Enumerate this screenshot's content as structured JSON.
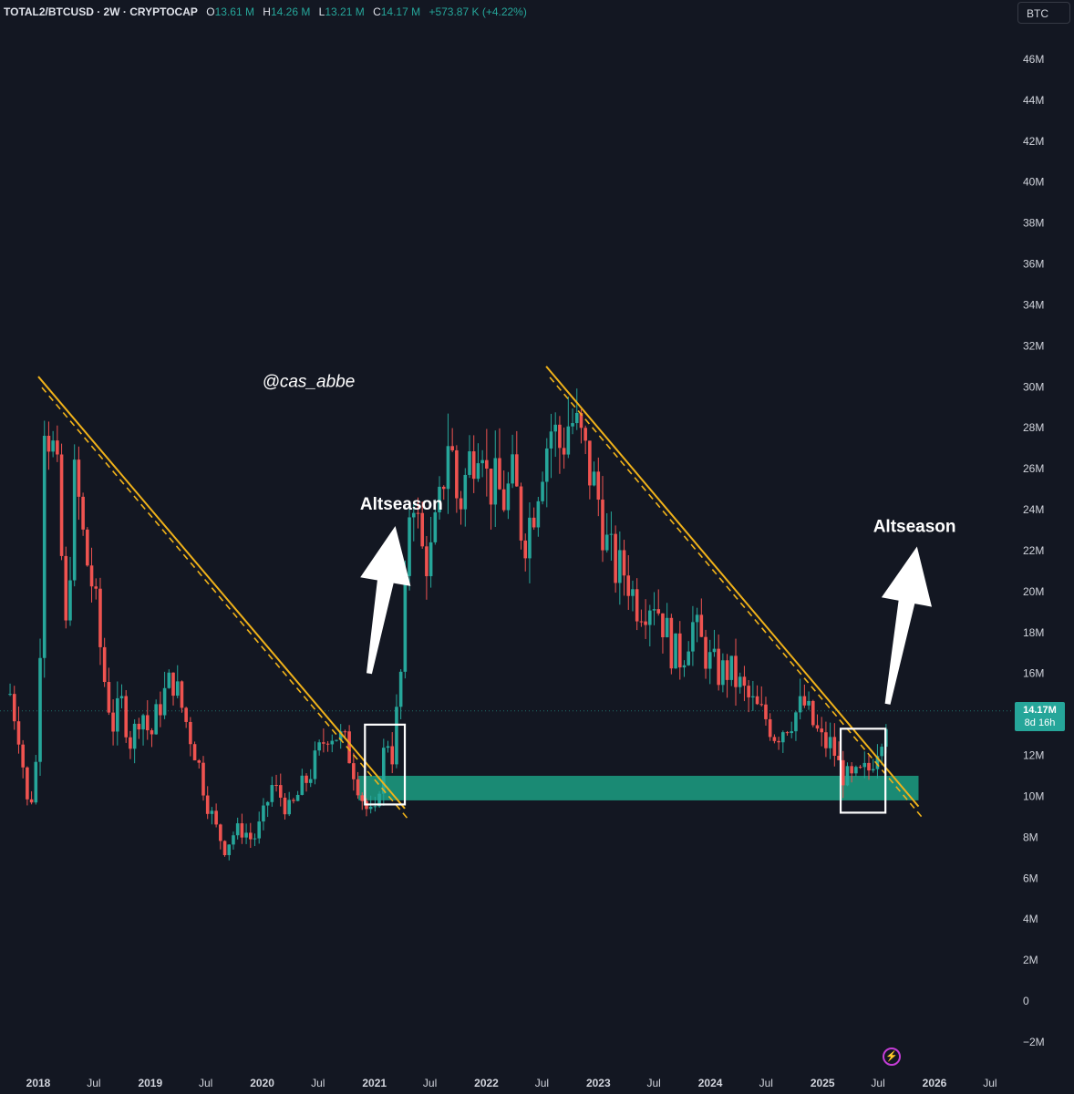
{
  "header": {
    "symbol": "TOTAL2/BTCUSD · 2W · CRYPTOCAP",
    "open_label": "O",
    "open": "13.61 M",
    "high_label": "H",
    "high": "14.26 M",
    "low_label": "L",
    "low": "13.21 M",
    "close_label": "C",
    "close": "14.17 M",
    "change": "+573.87 K (+4.22%)"
  },
  "toolbar": {
    "currency_button": "BTC"
  },
  "price_tag": {
    "value": "14.17M",
    "countdown": "8d 16h"
  },
  "icons": {
    "lightning": "lightning-icon"
  },
  "colors": {
    "background": "#131722",
    "up": "#26a69a",
    "down": "#ef5350",
    "trendline": "#f0b21a",
    "zone": "#1a8a74"
  },
  "chart_data": {
    "type": "candlestick",
    "title": "",
    "xlabel": "",
    "ylabel": "",
    "ylim": [
      -2000000,
      47000000
    ],
    "xlim": [
      "2017-10-01",
      "2026-10-01"
    ],
    "y_ticks": [
      {
        "v": 46000000,
        "label": "46M"
      },
      {
        "v": 44000000,
        "label": "44M"
      },
      {
        "v": 42000000,
        "label": "42M"
      },
      {
        "v": 40000000,
        "label": "40M"
      },
      {
        "v": 38000000,
        "label": "38M"
      },
      {
        "v": 36000000,
        "label": "36M"
      },
      {
        "v": 34000000,
        "label": "34M"
      },
      {
        "v": 32000000,
        "label": "32M"
      },
      {
        "v": 30000000,
        "label": "30M"
      },
      {
        "v": 28000000,
        "label": "28M"
      },
      {
        "v": 26000000,
        "label": "26M"
      },
      {
        "v": 24000000,
        "label": "24M"
      },
      {
        "v": 22000000,
        "label": "22M"
      },
      {
        "v": 20000000,
        "label": "20M"
      },
      {
        "v": 18000000,
        "label": "18M"
      },
      {
        "v": 16000000,
        "label": "16M"
      },
      {
        "v": 12000000,
        "label": "12M"
      },
      {
        "v": 10000000,
        "label": "10M"
      },
      {
        "v": 8000000,
        "label": "8M"
      },
      {
        "v": 6000000,
        "label": "6M"
      },
      {
        "v": 4000000,
        "label": "4M"
      },
      {
        "v": 2000000,
        "label": "2M"
      },
      {
        "v": 0,
        "label": "0"
      },
      {
        "v": -2000000,
        "label": "−2M"
      }
    ],
    "x_ticks": [
      {
        "date": "2018-01-01",
        "label": "2018",
        "bold": true
      },
      {
        "date": "2018-07-01",
        "label": "Jul",
        "bold": false
      },
      {
        "date": "2019-01-01",
        "label": "2019",
        "bold": true
      },
      {
        "date": "2019-07-01",
        "label": "Jul",
        "bold": false
      },
      {
        "date": "2020-01-01",
        "label": "2020",
        "bold": true
      },
      {
        "date": "2020-07-01",
        "label": "Jul",
        "bold": false
      },
      {
        "date": "2021-01-01",
        "label": "2021",
        "bold": true
      },
      {
        "date": "2021-07-01",
        "label": "Jul",
        "bold": false
      },
      {
        "date": "2022-01-01",
        "label": "2022",
        "bold": true
      },
      {
        "date": "2022-07-01",
        "label": "Jul",
        "bold": false
      },
      {
        "date": "2023-01-01",
        "label": "2023",
        "bold": true
      },
      {
        "date": "2023-07-01",
        "label": "Jul",
        "bold": false
      },
      {
        "date": "2024-01-01",
        "label": "2024",
        "bold": true
      },
      {
        "date": "2024-07-01",
        "label": "Jul",
        "bold": false
      },
      {
        "date": "2025-01-01",
        "label": "2025",
        "bold": true
      },
      {
        "date": "2025-07-01",
        "label": "Jul",
        "bold": false
      },
      {
        "date": "2026-01-01",
        "label": "2026",
        "bold": true
      },
      {
        "date": "2026-07-01",
        "label": "Jul",
        "bold": false
      }
    ],
    "price_path": [
      [
        "2017-10-01",
        15000000
      ],
      [
        "2017-11-01",
        13000000
      ],
      [
        "2017-12-01",
        9000000
      ],
      [
        "2018-01-01",
        12500000
      ],
      [
        "2018-01-20",
        29000000
      ],
      [
        "2018-03-01",
        26000000
      ],
      [
        "2018-04-01",
        18000000
      ],
      [
        "2018-05-01",
        25800000
      ],
      [
        "2018-06-01",
        22000000
      ],
      [
        "2018-07-01",
        20000000
      ],
      [
        "2018-08-01",
        16000000
      ],
      [
        "2018-09-01",
        13500000
      ],
      [
        "2018-10-01",
        14500000
      ],
      [
        "2018-11-01",
        12500000
      ],
      [
        "2018-12-01",
        14500000
      ],
      [
        "2019-01-01",
        12800000
      ],
      [
        "2019-02-01",
        14500000
      ],
      [
        "2019-03-15",
        15800000
      ],
      [
        "2019-05-01",
        13500000
      ],
      [
        "2019-06-01",
        12000000
      ],
      [
        "2019-07-01",
        10000000
      ],
      [
        "2019-08-01",
        8500000
      ],
      [
        "2019-09-01",
        7500000
      ],
      [
        "2019-10-01",
        8200000
      ],
      [
        "2019-11-01",
        8400000
      ],
      [
        "2019-12-01",
        7800000
      ],
      [
        "2020-01-01",
        8800000
      ],
      [
        "2020-02-01",
        10500000
      ],
      [
        "2020-03-01",
        10000000
      ],
      [
        "2020-04-01",
        9200000
      ],
      [
        "2020-05-01",
        10200000
      ],
      [
        "2020-06-01",
        11000000
      ],
      [
        "2020-07-01",
        12000000
      ],
      [
        "2020-08-01",
        13200000
      ],
      [
        "2020-09-01",
        13000000
      ],
      [
        "2020-10-01",
        12500000
      ],
      [
        "2020-11-01",
        11000000
      ],
      [
        "2020-12-01",
        9500000
      ],
      [
        "2021-01-01",
        8800000
      ],
      [
        "2021-01-20",
        11000000
      ],
      [
        "2021-02-10",
        13000000
      ],
      [
        "2021-03-01",
        12000000
      ],
      [
        "2021-04-01",
        16500000
      ],
      [
        "2021-05-01",
        26000000
      ],
      [
        "2021-06-01",
        22000000
      ],
      [
        "2021-07-01",
        21500000
      ],
      [
        "2021-08-01",
        24000000
      ],
      [
        "2021-09-01",
        28000000
      ],
      [
        "2021-10-01",
        24000000
      ],
      [
        "2021-11-01",
        26000000
      ],
      [
        "2021-12-15",
        28500000
      ],
      [
        "2022-01-01",
        25500000
      ],
      [
        "2022-02-01",
        25000000
      ],
      [
        "2022-03-01",
        24500000
      ],
      [
        "2022-04-01",
        25500000
      ],
      [
        "2022-05-01",
        22500000
      ],
      [
        "2022-06-01",
        24000000
      ],
      [
        "2022-07-01",
        26500000
      ],
      [
        "2022-08-01",
        28000000
      ],
      [
        "2022-09-01",
        27000000
      ],
      [
        "2022-10-01",
        28500000
      ],
      [
        "2022-11-01",
        27500000
      ],
      [
        "2022-12-01",
        26000000
      ],
      [
        "2023-01-01",
        24500000
      ],
      [
        "2023-02-01",
        22000000
      ],
      [
        "2023-03-01",
        21000000
      ],
      [
        "2023-04-01",
        21000000
      ],
      [
        "2023-05-01",
        19500000
      ],
      [
        "2023-06-01",
        19500000
      ],
      [
        "2023-07-01",
        19800000
      ],
      [
        "2023-08-01",
        18500000
      ],
      [
        "2023-09-01",
        17000000
      ],
      [
        "2023-10-01",
        16800000
      ],
      [
        "2023-11-01",
        18500000
      ],
      [
        "2023-12-01",
        17500000
      ],
      [
        "2024-01-01",
        16500000
      ],
      [
        "2024-02-01",
        16000000
      ],
      [
        "2024-03-01",
        16200000
      ],
      [
        "2024-04-01",
        15500000
      ],
      [
        "2024-05-01",
        14800000
      ],
      [
        "2024-06-01",
        14200000
      ],
      [
        "2024-07-01",
        13800000
      ],
      [
        "2024-08-01",
        13000000
      ],
      [
        "2024-09-01",
        13500000
      ],
      [
        "2024-10-01",
        14000000
      ],
      [
        "2024-11-01",
        14500000
      ],
      [
        "2024-12-01",
        13500000
      ],
      [
        "2025-01-01",
        12600000
      ],
      [
        "2025-02-01",
        12500000
      ],
      [
        "2025-03-01",
        11200000
      ],
      [
        "2025-04-01",
        10700000
      ],
      [
        "2025-05-01",
        11000000
      ],
      [
        "2025-06-01",
        11300000
      ],
      [
        "2025-07-01",
        12600000
      ],
      [
        "2025-08-01",
        14170000
      ]
    ],
    "current_price": 14170000,
    "trendlines": [
      {
        "from": [
          "2018-01-01",
          30500000
        ],
        "to": [
          "2021-04-10",
          9400000
        ]
      },
      {
        "from": [
          "2022-07-15",
          31000000
        ],
        "to": [
          "2025-11-10",
          9500000
        ]
      }
    ],
    "support_zone": {
      "from": "2020-11-10",
      "to": "2025-11-10",
      "low": 9800000,
      "high": 11000000
    },
    "highlight_boxes": [
      {
        "from": "2020-12-01",
        "to": "2021-04-10",
        "low": 9600000,
        "high": 13500000
      },
      {
        "from": "2025-03-01",
        "to": "2025-07-25",
        "low": 9200000,
        "high": 13300000
      }
    ],
    "annotations": [
      {
        "text": "@cas_abbe",
        "date": "2020-01-01",
        "value": 30000000,
        "style": "watermark"
      },
      {
        "text": "Altseason",
        "date": "2020-11-15",
        "value": 24000000,
        "style": "label"
      },
      {
        "text": "Altseason",
        "date": "2025-06-15",
        "value": 22900000,
        "style": "label"
      }
    ],
    "arrows": [
      {
        "from": [
          "2020-12-15",
          16000000
        ],
        "to": [
          "2021-03-10",
          23200000
        ]
      },
      {
        "from": [
          "2025-08-01",
          14500000
        ],
        "to": [
          "2025-11-05",
          22200000
        ]
      }
    ]
  }
}
